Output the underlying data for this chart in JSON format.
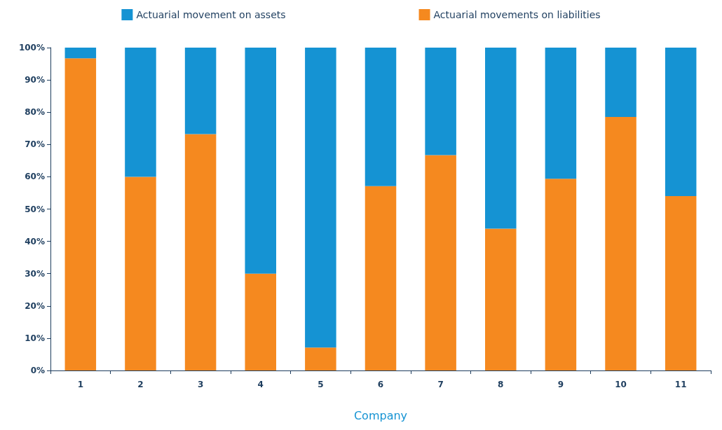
{
  "chart_data": {
    "type": "bar",
    "stacked": true,
    "xlabel": "Company",
    "categories": [
      "1",
      "2",
      "3",
      "4",
      "5",
      "6",
      "7",
      "8",
      "9",
      "10",
      "11"
    ],
    "series": [
      {
        "name": "Actuarial movements on liabilities",
        "color": "#f5891f",
        "values": [
          96.7,
          60,
          73.2,
          30,
          7.1,
          57.1,
          66.7,
          43.9,
          59.4,
          78.5,
          54
        ]
      },
      {
        "name": "Actuarial movement on assets",
        "color": "#1593d3",
        "values": [
          3.3,
          40,
          26.8,
          70,
          92.9,
          42.9,
          33.3,
          56.1,
          40.6,
          21.5,
          46
        ]
      }
    ],
    "ylim": [
      0,
      100
    ],
    "yticks": [
      {
        "value": 0,
        "label": "0%"
      },
      {
        "value": 10,
        "label": "10%"
      },
      {
        "value": 20,
        "label": "20%"
      },
      {
        "value": 30,
        "label": "30%"
      },
      {
        "value": 40,
        "label": "40%"
      },
      {
        "value": 50,
        "label": "50%"
      },
      {
        "value": 60,
        "label": "60%"
      },
      {
        "value": 70,
        "label": "70%"
      },
      {
        "value": 80,
        "label": "80%"
      },
      {
        "value": 90,
        "label": "90%"
      },
      {
        "value": 100,
        "label": "100%"
      }
    ],
    "grid": false,
    "legend": "top"
  }
}
